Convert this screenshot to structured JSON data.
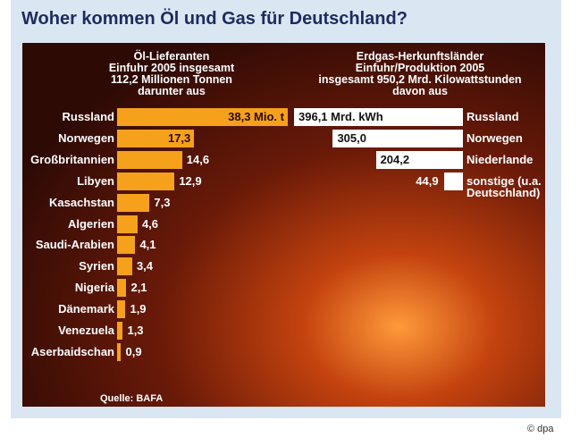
{
  "title": "Woher kommen Öl und Gas für Deutschland?",
  "source": "Quelle: BAFA",
  "credit": "© dpa",
  "chart_data": [
    {
      "type": "bar",
      "orientation": "horizontal",
      "direction": "right",
      "subtitle": [
        "Öl-Lieferanten",
        "Einfuhr 2005 insgesamt",
        "112,2 Millionen Tonnen",
        "darunter aus"
      ],
      "categories": [
        "Russland",
        "Norwegen",
        "Großbritannien",
        "Libyen",
        "Kasachstan",
        "Algerien",
        "Saudi-Arabien",
        "Syrien",
        "Nigeria",
        "Dänemark",
        "Venezuela",
        "Aserbaidschan"
      ],
      "values": [
        38.3,
        17.3,
        14.6,
        12.9,
        7.3,
        4.6,
        4.1,
        3.4,
        2.1,
        1.9,
        1.3,
        0.9
      ],
      "value_labels": [
        "38,3 Mio. t",
        "17,3",
        "14,6",
        "12,9",
        "7,3",
        "4,6",
        "4,1",
        "3,4",
        "2,1",
        "1,9",
        "1,3",
        "0,9"
      ],
      "color": "#f5a11c"
    },
    {
      "type": "bar",
      "orientation": "horizontal",
      "direction": "left",
      "subtitle": [
        "Erdgas-Herkunftsländer",
        "Einfuhr/Produktion 2005",
        "insgesamt 950,2 Mrd. Kilowattstunden",
        "davon aus"
      ],
      "categories": [
        "Russland",
        "Norwegen",
        "Niederlande",
        "sonstige (u.a. Deutschland)"
      ],
      "values": [
        396.1,
        305.0,
        204.2,
        44.9
      ],
      "value_labels": [
        "396,1 Mrd. kWh",
        "305,0",
        "204,2",
        "44,9"
      ],
      "color": "#ffffff"
    }
  ]
}
